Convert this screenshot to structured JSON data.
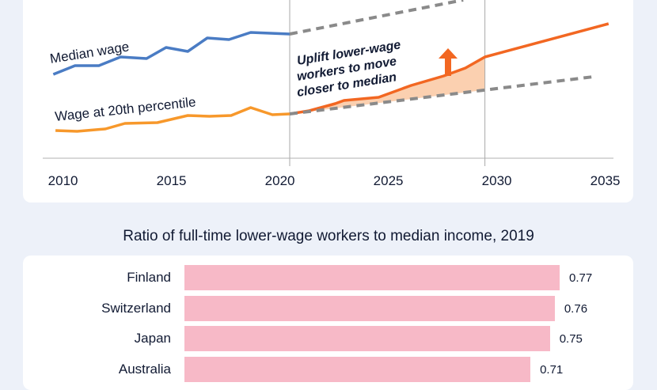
{
  "chart_data": [
    {
      "type": "line",
      "title": "",
      "xlabel": "",
      "ylabel": "",
      "xlim": [
        2010,
        2036
      ],
      "ylim": [
        0,
        100
      ],
      "x_ticks": [
        "2010",
        "2015",
        "2020",
        "2025",
        "2030",
        "2035"
      ],
      "reference_lines_x": [
        2021,
        2030
      ],
      "series": [
        {
          "name": "Median wage",
          "label": "Median wage",
          "color": "#4a7cc4",
          "style": "solid",
          "x": [
            2010.1,
            2011.1,
            2012.2,
            2013.2,
            2014.4,
            2015.3,
            2016.3,
            2017.2,
            2018.2,
            2019.2,
            2021
          ],
          "y": [
            53,
            58.5,
            58.5,
            64,
            63,
            70,
            67.5,
            76,
            75,
            79.5,
            78.5
          ]
        },
        {
          "name": "Median wage projection",
          "color": "#8a8a8a",
          "style": "dashed",
          "x": [
            2021,
            2029
          ],
          "y": [
            78.5,
            100
          ]
        },
        {
          "name": "Wage at 20th percentile",
          "label": "Wage at 20th percentile",
          "color": "#f7982b",
          "style": "solid",
          "x": [
            2010.2,
            2011.2,
            2012.5,
            2013.4,
            2014.9,
            2016.3,
            2017.3,
            2018.3,
            2019.2,
            2020.2,
            2021
          ],
          "y": [
            17.5,
            17,
            18.5,
            22,
            22.5,
            27,
            26.5,
            27,
            32,
            27.5,
            28
          ]
        },
        {
          "name": "Uplifted lower-wage projection",
          "color": "#f26722",
          "style": "solid",
          "x": [
            2021,
            2021.9,
            2023.1,
            2023.5,
            2025.1,
            2026.6,
            2028.1,
            2029.1,
            2030,
            2035.7
          ],
          "y": [
            28,
            30,
            34.5,
            36.5,
            38.5,
            46,
            52,
            57,
            64,
            85
          ]
        },
        {
          "name": "20th percentile baseline projection",
          "color": "#8a8a8a",
          "style": "dashed",
          "x": [
            2021,
            2035
          ],
          "y": [
            28,
            51.5
          ]
        }
      ],
      "annotation": "Uplift lower-wage workers to move closer to median",
      "shade_color": "#fbd0b0"
    },
    {
      "type": "bar",
      "title": "Ratio of full-time lower-wage workers to median income, 2019",
      "categories": [
        "Finland",
        "Switzerland",
        "Japan",
        "Australia"
      ],
      "values": [
        0.77,
        0.76,
        0.75,
        0.71
      ],
      "value_labels": [
        "0.77",
        "0.76",
        "0.75",
        "0.71"
      ],
      "color": "#f7b9c7",
      "xlim": [
        0,
        0.77
      ]
    }
  ]
}
